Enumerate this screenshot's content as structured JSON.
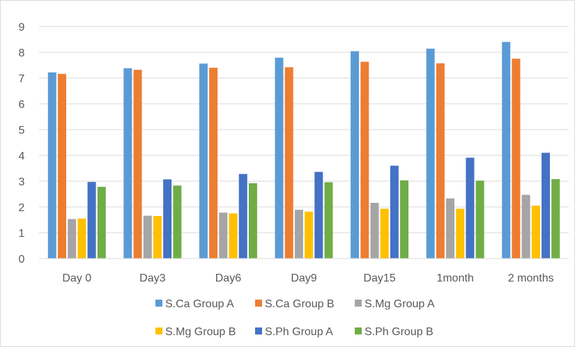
{
  "chart_data": {
    "type": "bar",
    "title": "",
    "xlabel": "",
    "ylabel": "",
    "ylim": [
      0,
      9
    ],
    "yticks": [
      0,
      1,
      2,
      3,
      4,
      5,
      6,
      7,
      8,
      9
    ],
    "grid": "horizontal",
    "legend_position": "bottom",
    "categories": [
      "Day 0",
      "Day3",
      "Day6",
      "Day9",
      "Day15",
      "1month",
      "2 months"
    ],
    "series": [
      {
        "name": "S.Ca Group A",
        "color": "#5b9bd5",
        "values": [
          7.22,
          7.38,
          7.56,
          7.79,
          8.04,
          8.14,
          8.4
        ]
      },
      {
        "name": "S.Ca Group B",
        "color": "#ed7d31",
        "values": [
          7.16,
          7.32,
          7.4,
          7.42,
          7.63,
          7.57,
          7.75
        ]
      },
      {
        "name": "S.Mg Group A",
        "color": "#a5a5a5",
        "values": [
          1.53,
          1.66,
          1.78,
          1.89,
          2.16,
          2.33,
          2.47
        ]
      },
      {
        "name": "S.Mg Group B",
        "color": "#ffc000",
        "values": [
          1.55,
          1.65,
          1.75,
          1.82,
          1.93,
          1.93,
          2.05
        ]
      },
      {
        "name": "S.Ph Group A",
        "color": "#4472c4",
        "values": [
          2.97,
          3.07,
          3.28,
          3.36,
          3.6,
          3.91,
          4.1
        ]
      },
      {
        "name": "S.Ph Group B",
        "color": "#70ad47",
        "values": [
          2.78,
          2.83,
          2.92,
          2.96,
          3.03,
          3.02,
          3.08
        ]
      }
    ]
  }
}
